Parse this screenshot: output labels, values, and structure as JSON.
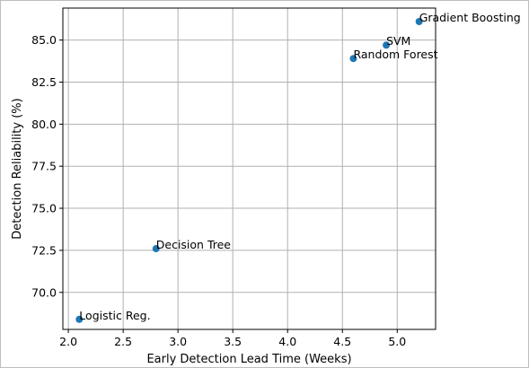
{
  "chart_data": {
    "type": "scatter",
    "xlabel": "Early Detection Lead Time (Weeks)",
    "ylabel": "Detection Reliability (%)",
    "xlim": [
      1.95,
      5.35
    ],
    "ylim": [
      67.8,
      86.9
    ],
    "grid": true,
    "marker_color": "#1f77b4",
    "points": [
      {
        "label": "Logistic Reg.",
        "x": 2.1,
        "y": 68.4
      },
      {
        "label": "Decision Tree",
        "x": 2.8,
        "y": 72.6
      },
      {
        "label": "Random Forest",
        "x": 4.6,
        "y": 83.9
      },
      {
        "label": "SVM",
        "x": 4.9,
        "y": 84.7
      },
      {
        "label": "Gradient Boosting",
        "x": 5.2,
        "y": 86.1
      }
    ],
    "xticks": [
      {
        "value": 2.0,
        "label": "2.0"
      },
      {
        "value": 2.5,
        "label": "2.5"
      },
      {
        "value": 3.0,
        "label": "3.0"
      },
      {
        "value": 3.5,
        "label": "3.5"
      },
      {
        "value": 4.0,
        "label": "4.0"
      },
      {
        "value": 4.5,
        "label": "4.5"
      },
      {
        "value": 5.0,
        "label": "5.0"
      }
    ],
    "yticks": [
      {
        "value": 70.0,
        "label": "70.0"
      },
      {
        "value": 72.5,
        "label": "72.5"
      },
      {
        "value": 75.0,
        "label": "75.0"
      },
      {
        "value": 77.5,
        "label": "77.5"
      },
      {
        "value": 80.0,
        "label": "80.0"
      },
      {
        "value": 82.5,
        "label": "82.5"
      },
      {
        "value": 85.0,
        "label": "85.0"
      }
    ]
  }
}
